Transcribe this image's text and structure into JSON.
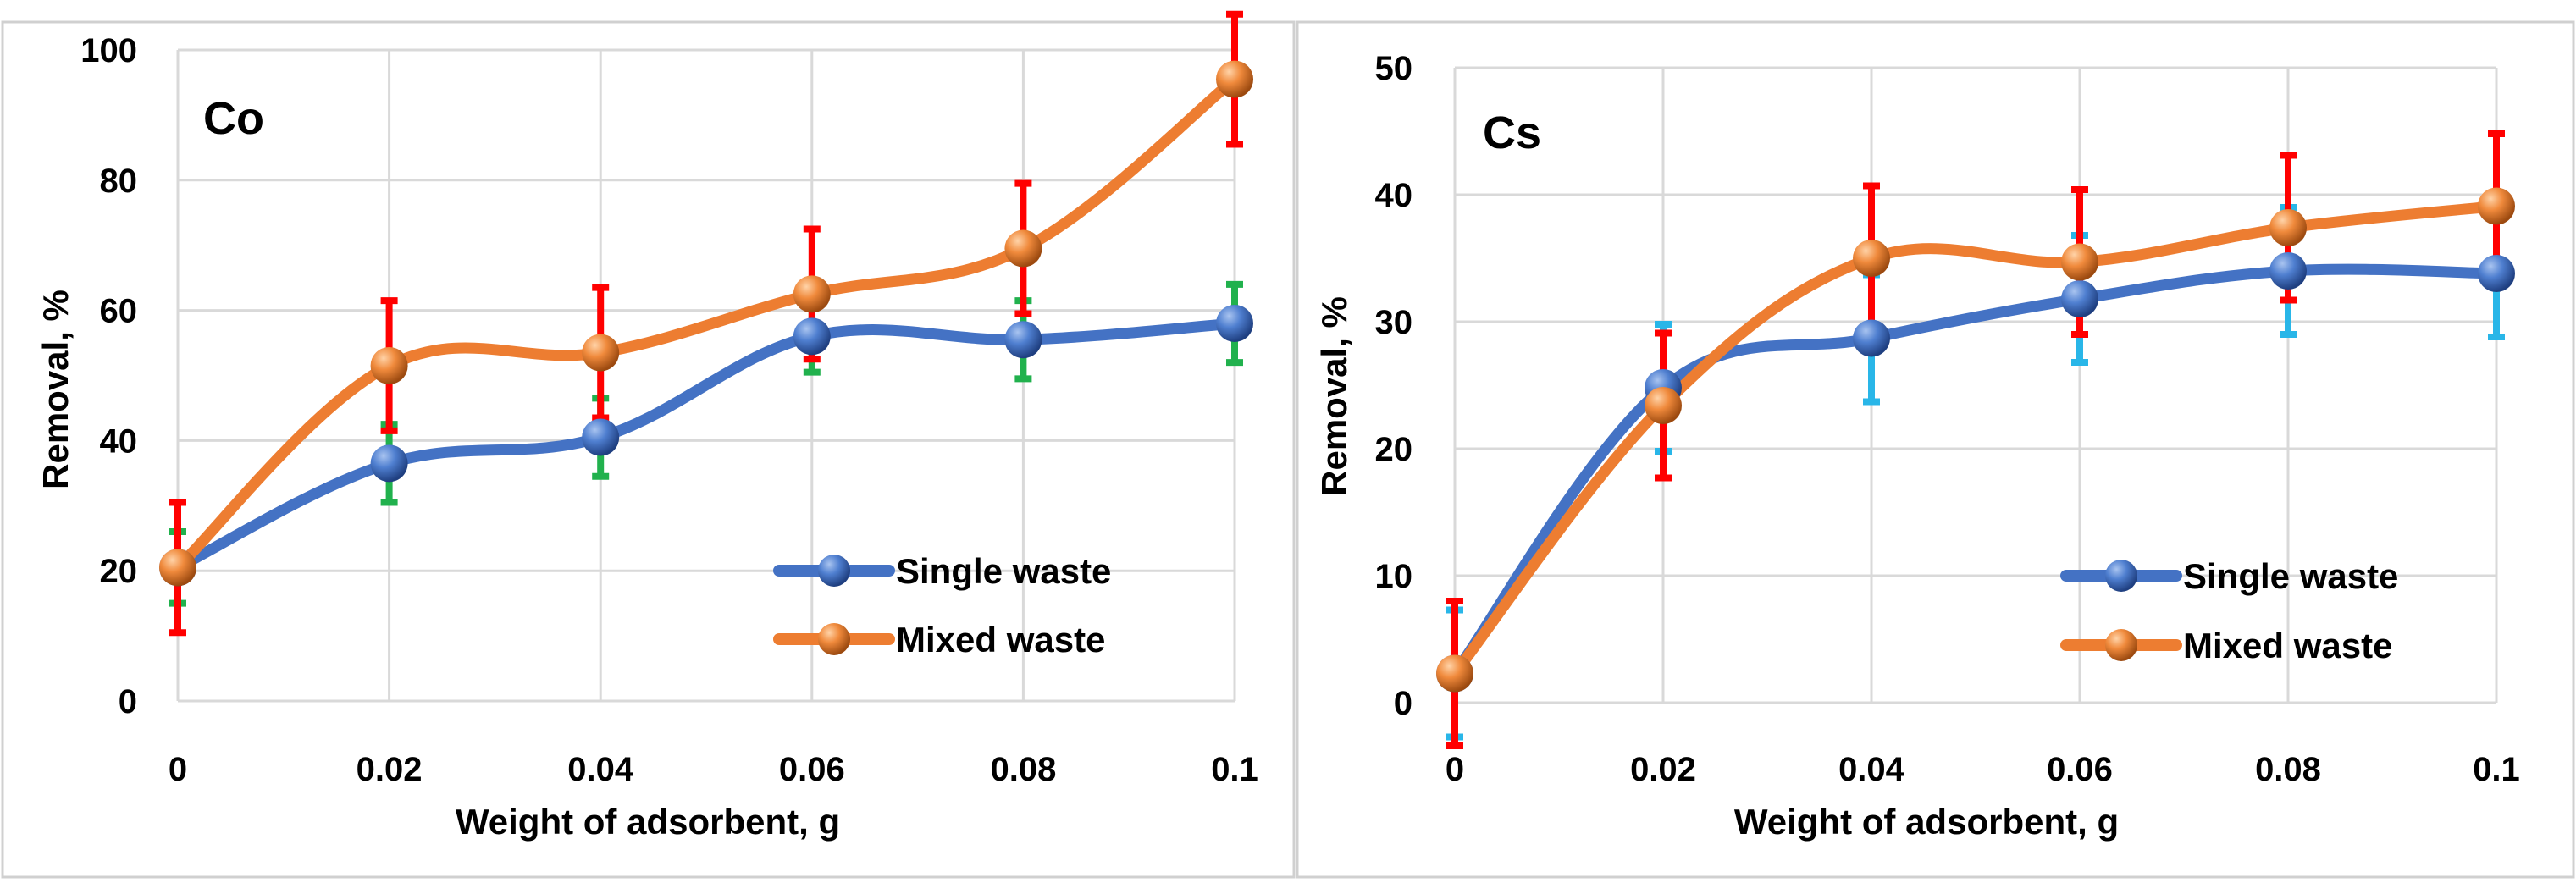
{
  "chart_data": [
    {
      "type": "line",
      "title": "Co",
      "xlabel": "Weight of adsorbent, g",
      "ylabel": "Removal, %",
      "ylim": [
        0,
        100
      ],
      "yticks": [
        0,
        20,
        40,
        60,
        80,
        100
      ],
      "x": [
        0,
        0.02,
        0.04,
        0.06,
        0.08,
        0.1
      ],
      "x_labels": [
        "0",
        "0.02",
        "0.04",
        "0.06",
        "0.08",
        "0.1"
      ],
      "grid": true,
      "legend": "bottom-right",
      "series": [
        {
          "name": "Single waste",
          "values": [
            20.5,
            36.5,
            40.5,
            56,
            55.5,
            58
          ],
          "error": [
            5.5,
            6,
            6,
            5.5,
            6,
            6
          ],
          "color": "#4472c4",
          "error_color": "#21b14d"
        },
        {
          "name": "Mixed waste",
          "values": [
            20.5,
            51.5,
            53.5,
            62.5,
            69.5,
            95.5
          ],
          "error": [
            10,
            10,
            10,
            10,
            10,
            10
          ],
          "color": "#ed7d31",
          "error_color": "#ff0000"
        }
      ]
    },
    {
      "type": "line",
      "title": "Cs",
      "xlabel": "Weight of adsorbent, g",
      "ylabel": "Removal, %",
      "ylim": [
        0,
        50
      ],
      "yticks": [
        0,
        10,
        20,
        30,
        40,
        50
      ],
      "x": [
        0,
        0.02,
        0.04,
        0.06,
        0.08,
        0.1
      ],
      "x_labels": [
        "0",
        "0.02",
        "0.04",
        "0.06",
        "0.08",
        "0.1"
      ],
      "grid": true,
      "legend": "bottom-right",
      "series": [
        {
          "name": "Single waste",
          "values": [
            2.3,
            24.8,
            28.7,
            31.8,
            34,
            33.8
          ],
          "error": [
            5,
            5,
            5,
            5,
            5,
            5
          ],
          "color": "#4472c4",
          "error_color": "#29b6e8"
        },
        {
          "name": "Mixed waste",
          "values": [
            2.3,
            23.4,
            35,
            34.7,
            37.4,
            39.1
          ],
          "error": [
            5.7,
            5.7,
            5.7,
            5.7,
            5.7,
            5.7
          ],
          "color": "#ed7d31",
          "error_color": "#ff0000"
        }
      ]
    }
  ]
}
